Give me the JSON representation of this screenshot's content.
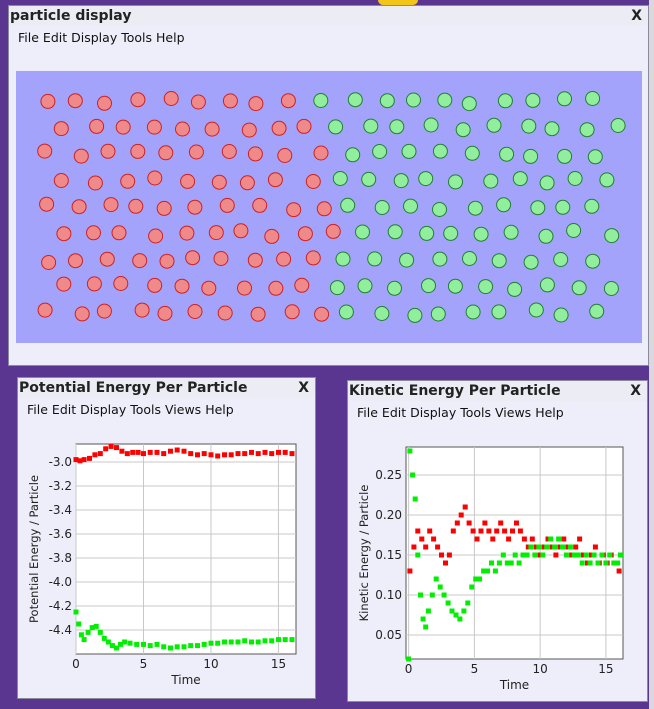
{
  "colors": {
    "desktop": "#5b3690",
    "particle_red": "#f08a8a",
    "particle_red_edge": "#d02020",
    "particle_green": "#90ee9c",
    "particle_green_edge": "#208030",
    "plot_red": "#ff0000",
    "plot_green": "#00ee00"
  },
  "particle_window": {
    "title": "particle display",
    "close_label": "X",
    "menu": [
      "File",
      "Edit",
      "Display",
      "Tools",
      "Help"
    ]
  },
  "pe_window": {
    "title": "Potential Energy Per Particle",
    "close_label": "X",
    "menu": [
      "File",
      "Edit",
      "Display",
      "Tools",
      "Views",
      "Help"
    ]
  },
  "ke_window": {
    "title": "Kinetic Energy Per Particle",
    "close_label": "X",
    "menu": [
      "File",
      "Edit",
      "Display",
      "Tools",
      "Views",
      "Help"
    ]
  },
  "chart_data": [
    {
      "type": "scatter",
      "title": "",
      "xlabel": "Time",
      "ylabel": "Potential Energy / Particle",
      "xlim": [
        0,
        16.3
      ],
      "ylim": [
        -4.6,
        -2.85
      ],
      "xticks": [
        0,
        5,
        10,
        15
      ],
      "yticks": [
        -3.0,
        -3.2,
        -3.4,
        -3.6,
        -3.8,
        -4.0,
        -4.2,
        -4.4
      ],
      "ytick_labels": [
        "-3.0",
        "-3.2",
        "-3.4",
        "-3.6",
        "-3.8",
        "-4.0",
        "-4.2",
        "-4.4"
      ],
      "grid": true,
      "series": [
        {
          "color": "red",
          "points": [
            [
              0,
              -2.98
            ],
            [
              0.3,
              -2.99
            ],
            [
              0.6,
              -2.98
            ],
            [
              1.0,
              -2.97
            ],
            [
              1.4,
              -2.94
            ],
            [
              1.8,
              -2.93
            ],
            [
              2.2,
              -2.89
            ],
            [
              2.6,
              -2.87
            ],
            [
              3.0,
              -2.88
            ],
            [
              3.4,
              -2.91
            ],
            [
              3.8,
              -2.93
            ],
            [
              4.2,
              -2.92
            ],
            [
              4.6,
              -2.92
            ],
            [
              5.0,
              -2.93
            ],
            [
              5.5,
              -2.92
            ],
            [
              6.0,
              -2.92
            ],
            [
              6.5,
              -2.93
            ],
            [
              7.0,
              -2.91
            ],
            [
              7.5,
              -2.9
            ],
            [
              8.0,
              -2.91
            ],
            [
              8.5,
              -2.93
            ],
            [
              9.0,
              -2.94
            ],
            [
              9.5,
              -2.93
            ],
            [
              10.0,
              -2.94
            ],
            [
              10.5,
              -2.95
            ],
            [
              11.0,
              -2.94
            ],
            [
              11.5,
              -2.94
            ],
            [
              12.0,
              -2.93
            ],
            [
              12.5,
              -2.93
            ],
            [
              13.0,
              -2.92
            ],
            [
              13.5,
              -2.93
            ],
            [
              14.0,
              -2.92
            ],
            [
              14.5,
              -2.93
            ],
            [
              15.0,
              -2.92
            ],
            [
              15.5,
              -2.92
            ],
            [
              16.0,
              -2.93
            ]
          ]
        },
        {
          "color": "green",
          "points": [
            [
              0,
              -4.25
            ],
            [
              0.2,
              -4.35
            ],
            [
              0.4,
              -4.44
            ],
            [
              0.6,
              -4.48
            ],
            [
              0.9,
              -4.42
            ],
            [
              1.2,
              -4.38
            ],
            [
              1.5,
              -4.37
            ],
            [
              1.8,
              -4.42
            ],
            [
              2.1,
              -4.47
            ],
            [
              2.4,
              -4.5
            ],
            [
              2.7,
              -4.53
            ],
            [
              3.0,
              -4.55
            ],
            [
              3.3,
              -4.52
            ],
            [
              3.6,
              -4.5
            ],
            [
              4.0,
              -4.51
            ],
            [
              4.5,
              -4.52
            ],
            [
              5.0,
              -4.52
            ],
            [
              5.5,
              -4.53
            ],
            [
              6.0,
              -4.52
            ],
            [
              6.5,
              -4.54
            ],
            [
              7.0,
              -4.55
            ],
            [
              7.5,
              -4.54
            ],
            [
              8.0,
              -4.54
            ],
            [
              8.5,
              -4.53
            ],
            [
              9.0,
              -4.53
            ],
            [
              9.5,
              -4.52
            ],
            [
              10.0,
              -4.51
            ],
            [
              10.5,
              -4.51
            ],
            [
              11.0,
              -4.5
            ],
            [
              11.5,
              -4.5
            ],
            [
              12.0,
              -4.5
            ],
            [
              12.5,
              -4.49
            ],
            [
              13.0,
              -4.5
            ],
            [
              13.5,
              -4.5
            ],
            [
              14.0,
              -4.49
            ],
            [
              14.5,
              -4.49
            ],
            [
              15.0,
              -4.48
            ],
            [
              15.5,
              -4.48
            ],
            [
              16.0,
              -4.48
            ]
          ]
        }
      ]
    },
    {
      "type": "scatter",
      "title": "",
      "xlabel": "Time",
      "ylabel": "Kinetic Energy / Particle",
      "xlim": [
        -0.2,
        16.3
      ],
      "ylim": [
        0.02,
        0.285
      ],
      "xticks": [
        0,
        5,
        10,
        15
      ],
      "yticks": [
        0.05,
        0.1,
        0.15,
        0.2,
        0.25
      ],
      "ytick_labels": [
        "0.05",
        "0.10",
        "0.15",
        "0.20",
        "0.25"
      ],
      "grid": true,
      "series": [
        {
          "color": "red",
          "points": [
            [
              0.1,
              0.13
            ],
            [
              0.4,
              0.16
            ],
            [
              0.7,
              0.18
            ],
            [
              1.0,
              0.17
            ],
            [
              1.3,
              0.16
            ],
            [
              1.6,
              0.18
            ],
            [
              1.9,
              0.17
            ],
            [
              2.2,
              0.16
            ],
            [
              2.5,
              0.15
            ],
            [
              2.8,
              0.14
            ],
            [
              3.1,
              0.15
            ],
            [
              3.4,
              0.18
            ],
            [
              3.7,
              0.19
            ],
            [
              4.0,
              0.2
            ],
            [
              4.3,
              0.21
            ],
            [
              4.6,
              0.19
            ],
            [
              4.9,
              0.18
            ],
            [
              5.2,
              0.17
            ],
            [
              5.5,
              0.18
            ],
            [
              5.8,
              0.19
            ],
            [
              6.1,
              0.18
            ],
            [
              6.4,
              0.17
            ],
            [
              6.7,
              0.18
            ],
            [
              7.0,
              0.19
            ],
            [
              7.3,
              0.18
            ],
            [
              7.6,
              0.17
            ],
            [
              7.9,
              0.18
            ],
            [
              8.2,
              0.19
            ],
            [
              8.5,
              0.18
            ],
            [
              8.8,
              0.17
            ],
            [
              9.1,
              0.16
            ],
            [
              9.4,
              0.17
            ],
            [
              9.7,
              0.16
            ],
            [
              10.0,
              0.15
            ],
            [
              10.3,
              0.16
            ],
            [
              10.6,
              0.17
            ],
            [
              10.9,
              0.16
            ],
            [
              11.2,
              0.15
            ],
            [
              11.5,
              0.16
            ],
            [
              11.8,
              0.17
            ],
            [
              12.1,
              0.16
            ],
            [
              12.4,
              0.15
            ],
            [
              12.7,
              0.16
            ],
            [
              13.0,
              0.17
            ],
            [
              13.3,
              0.15
            ],
            [
              13.6,
              0.14
            ],
            [
              13.9,
              0.15
            ],
            [
              14.2,
              0.16
            ],
            [
              14.5,
              0.14
            ],
            [
              14.8,
              0.15
            ],
            [
              15.1,
              0.14
            ],
            [
              15.4,
              0.15
            ],
            [
              15.7,
              0.14
            ],
            [
              16.0,
              0.13
            ]
          ]
        },
        {
          "color": "green",
          "points": [
            [
              0,
              0.02
            ],
            [
              0.1,
              0.28
            ],
            [
              0.3,
              0.25
            ],
            [
              0.5,
              0.22
            ],
            [
              0.7,
              0.15
            ],
            [
              0.9,
              0.1
            ],
            [
              1.1,
              0.07
            ],
            [
              1.3,
              0.06
            ],
            [
              1.5,
              0.08
            ],
            [
              1.8,
              0.1
            ],
            [
              2.1,
              0.12
            ],
            [
              2.4,
              0.11
            ],
            [
              2.7,
              0.1
            ],
            [
              3.0,
              0.09
            ],
            [
              3.3,
              0.08
            ],
            [
              3.6,
              0.075
            ],
            [
              3.9,
              0.07
            ],
            [
              4.2,
              0.08
            ],
            [
              4.5,
              0.09
            ],
            [
              4.8,
              0.11
            ],
            [
              5.1,
              0.12
            ],
            [
              5.4,
              0.12
            ],
            [
              5.7,
              0.13
            ],
            [
              6.0,
              0.13
            ],
            [
              6.3,
              0.14
            ],
            [
              6.6,
              0.13
            ],
            [
              6.9,
              0.14
            ],
            [
              7.2,
              0.15
            ],
            [
              7.5,
              0.14
            ],
            [
              7.8,
              0.14
            ],
            [
              8.1,
              0.15
            ],
            [
              8.4,
              0.14
            ],
            [
              8.7,
              0.15
            ],
            [
              9.0,
              0.15
            ],
            [
              9.3,
              0.16
            ],
            [
              9.6,
              0.15
            ],
            [
              9.9,
              0.16
            ],
            [
              10.2,
              0.15
            ],
            [
              10.5,
              0.16
            ],
            [
              10.8,
              0.17
            ],
            [
              11.1,
              0.16
            ],
            [
              11.4,
              0.17
            ],
            [
              11.7,
              0.16
            ],
            [
              12.0,
              0.15
            ],
            [
              12.3,
              0.16
            ],
            [
              12.6,
              0.15
            ],
            [
              12.9,
              0.15
            ],
            [
              13.2,
              0.14
            ],
            [
              13.5,
              0.15
            ],
            [
              13.8,
              0.14
            ],
            [
              14.1,
              0.15
            ],
            [
              14.4,
              0.14
            ],
            [
              14.7,
              0.15
            ],
            [
              15.0,
              0.14
            ],
            [
              15.3,
              0.15
            ],
            [
              15.6,
              0.14
            ],
            [
              15.9,
              0.14
            ],
            [
              16.1,
              0.15
            ]
          ]
        }
      ]
    }
  ]
}
